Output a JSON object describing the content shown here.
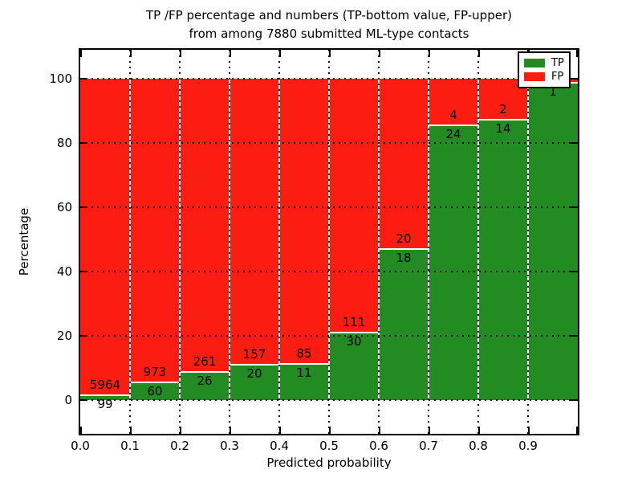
{
  "title": {
    "line1": "TP /FP percentage and numbers (TP-bottom value, FP-upper)",
    "line2": "from among 7880 submitted ML-type contacts"
  },
  "axes": {
    "ylabel": "Percentage",
    "xlabel": "Predicted probability",
    "ytick_labels": [
      "0",
      "20",
      "40",
      "60",
      "80",
      "100"
    ],
    "ytick_values": [
      0,
      20,
      40,
      60,
      80,
      100
    ],
    "xtick_labels": [
      "0.0",
      "0.1",
      "0.2",
      "0.3",
      "0.4",
      "0.5",
      "0.6",
      "0.7",
      "0.8",
      "0.9"
    ],
    "xtick_values": [
      0.0,
      0.1,
      0.2,
      0.3,
      0.4,
      0.5,
      0.6,
      0.7,
      0.8,
      0.9
    ]
  },
  "legend": {
    "items": [
      {
        "label": "TP",
        "color": "#228b22"
      },
      {
        "label": "FP",
        "color": "#fb1d11"
      }
    ]
  },
  "colors": {
    "tp_green": "#228b22",
    "fp_red": "#fb1d11",
    "background": "#ffffff",
    "axis": "#000000",
    "segment_edge": "#ffffff"
  },
  "chart_data": {
    "type": "bar",
    "subtype": "stacked-percentage",
    "title": "TP /FP percentage and numbers (TP-bottom value, FP-upper) from among 7880 submitted ML-type contacts",
    "xlabel": "Predicted probability",
    "ylabel": "Percentage",
    "xlim": [
      0.0,
      1.0
    ],
    "ylim": [
      -10,
      110
    ],
    "grid": true,
    "legend_position": "upper right",
    "bin_width": 0.1,
    "bin_starts": [
      0.0,
      0.1,
      0.2,
      0.3,
      0.4,
      0.5,
      0.6,
      0.7,
      0.8,
      0.9
    ],
    "categories": [
      "0.0-0.1",
      "0.1-0.2",
      "0.2-0.3",
      "0.3-0.4",
      "0.4-0.5",
      "0.5-0.6",
      "0.6-0.7",
      "0.7-0.8",
      "0.8-0.9",
      "0.9-1.0"
    ],
    "series": [
      {
        "name": "TP",
        "position": "bottom",
        "color": "#228b22",
        "labels": [
          "99",
          "60",
          "26",
          "20",
          "11",
          "30",
          "18",
          "24",
          "14",
          "1"
        ],
        "percent": [
          1.63,
          5.81,
          9.06,
          11.3,
          11.46,
          21.28,
          47.37,
          85.71,
          87.5,
          99.0
        ]
      },
      {
        "name": "FP",
        "position": "top",
        "color": "#fb1d11",
        "labels": [
          "5964",
          "973",
          "261",
          "157",
          "85",
          "111",
          "20",
          "4",
          "2",
          ""
        ],
        "percent": [
          98.37,
          94.19,
          90.94,
          88.7,
          88.54,
          78.72,
          52.63,
          14.29,
          12.5,
          1.0
        ]
      }
    ],
    "note_last_bin": "labels partially hidden behind legend"
  }
}
